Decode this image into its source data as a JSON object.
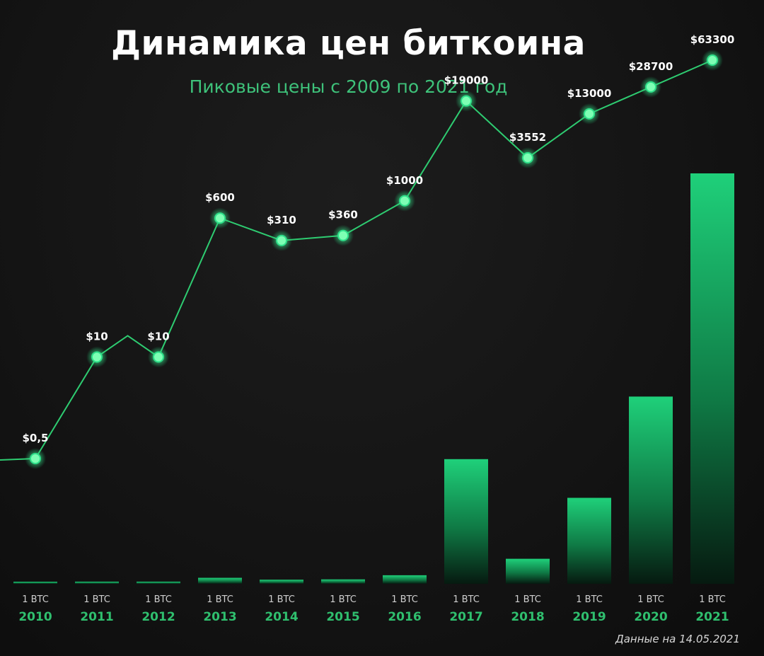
{
  "chart_data": {
    "type": "bar",
    "title": "Динамика цен биткоина",
    "subtitle": "Пиковые цены с 2009 по 2021 год",
    "note": "Данные на 14.05.2021",
    "categories": [
      "2010",
      "2011",
      "2012",
      "2013",
      "2014",
      "2015",
      "2016",
      "2017",
      "2018",
      "2019",
      "2020",
      "2021"
    ],
    "category_prefix": "1 BTC",
    "series": [
      {
        "values": [
          0.5,
          10,
          10,
          600,
          310,
          360,
          1000,
          19000,
          3552,
          13000,
          28700,
          63300
        ],
        "labels": [
          "$0,5",
          "$10",
          "$10",
          "$600",
          "$310",
          "$360",
          "$1000",
          "$19000",
          "$3552",
          "$13000",
          "$28700",
          "$63300"
        ]
      }
    ],
    "colors": {
      "accent": "#1fd07a",
      "line": "#2ecc71",
      "marker": "#7dffb4"
    }
  }
}
